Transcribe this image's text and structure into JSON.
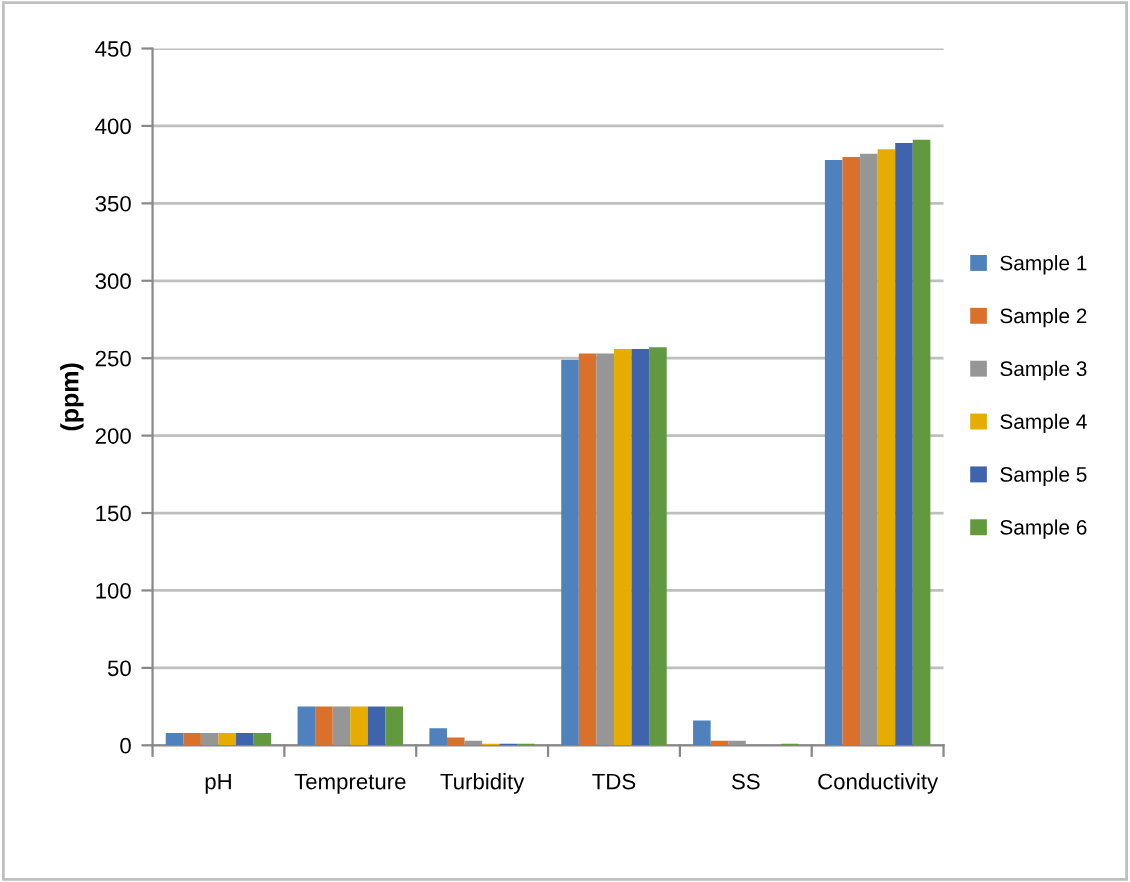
{
  "chart_data": {
    "type": "bar",
    "ylabel": "(ppm)",
    "categories": [
      "pH",
      "Tempreture",
      "Turbidity",
      "TDS",
      "SS",
      "Conductivity"
    ],
    "series": [
      {
        "name": "Sample 1",
        "color": "#4f81bd",
        "values": [
          8,
          25,
          11,
          249,
          16,
          378
        ]
      },
      {
        "name": "Sample 2",
        "color": "#d9702c",
        "values": [
          8,
          25,
          5,
          253,
          3,
          380
        ]
      },
      {
        "name": "Sample 3",
        "color": "#969696",
        "values": [
          8,
          25,
          3,
          253,
          3,
          382
        ]
      },
      {
        "name": "Sample 4",
        "color": "#e6ac00",
        "values": [
          8,
          25,
          1,
          256,
          0,
          385
        ]
      },
      {
        "name": "Sample 5",
        "color": "#3f64ad",
        "values": [
          8,
          25,
          1,
          256,
          0,
          389
        ]
      },
      {
        "name": "Sample 6",
        "color": "#62993f",
        "values": [
          8,
          25,
          1,
          257,
          1,
          391
        ]
      }
    ],
    "ylim": [
      0,
      450
    ],
    "yticks": [
      0,
      50,
      100,
      150,
      200,
      250,
      300,
      350,
      400,
      450
    ],
    "grid": "y",
    "legend": "right"
  }
}
